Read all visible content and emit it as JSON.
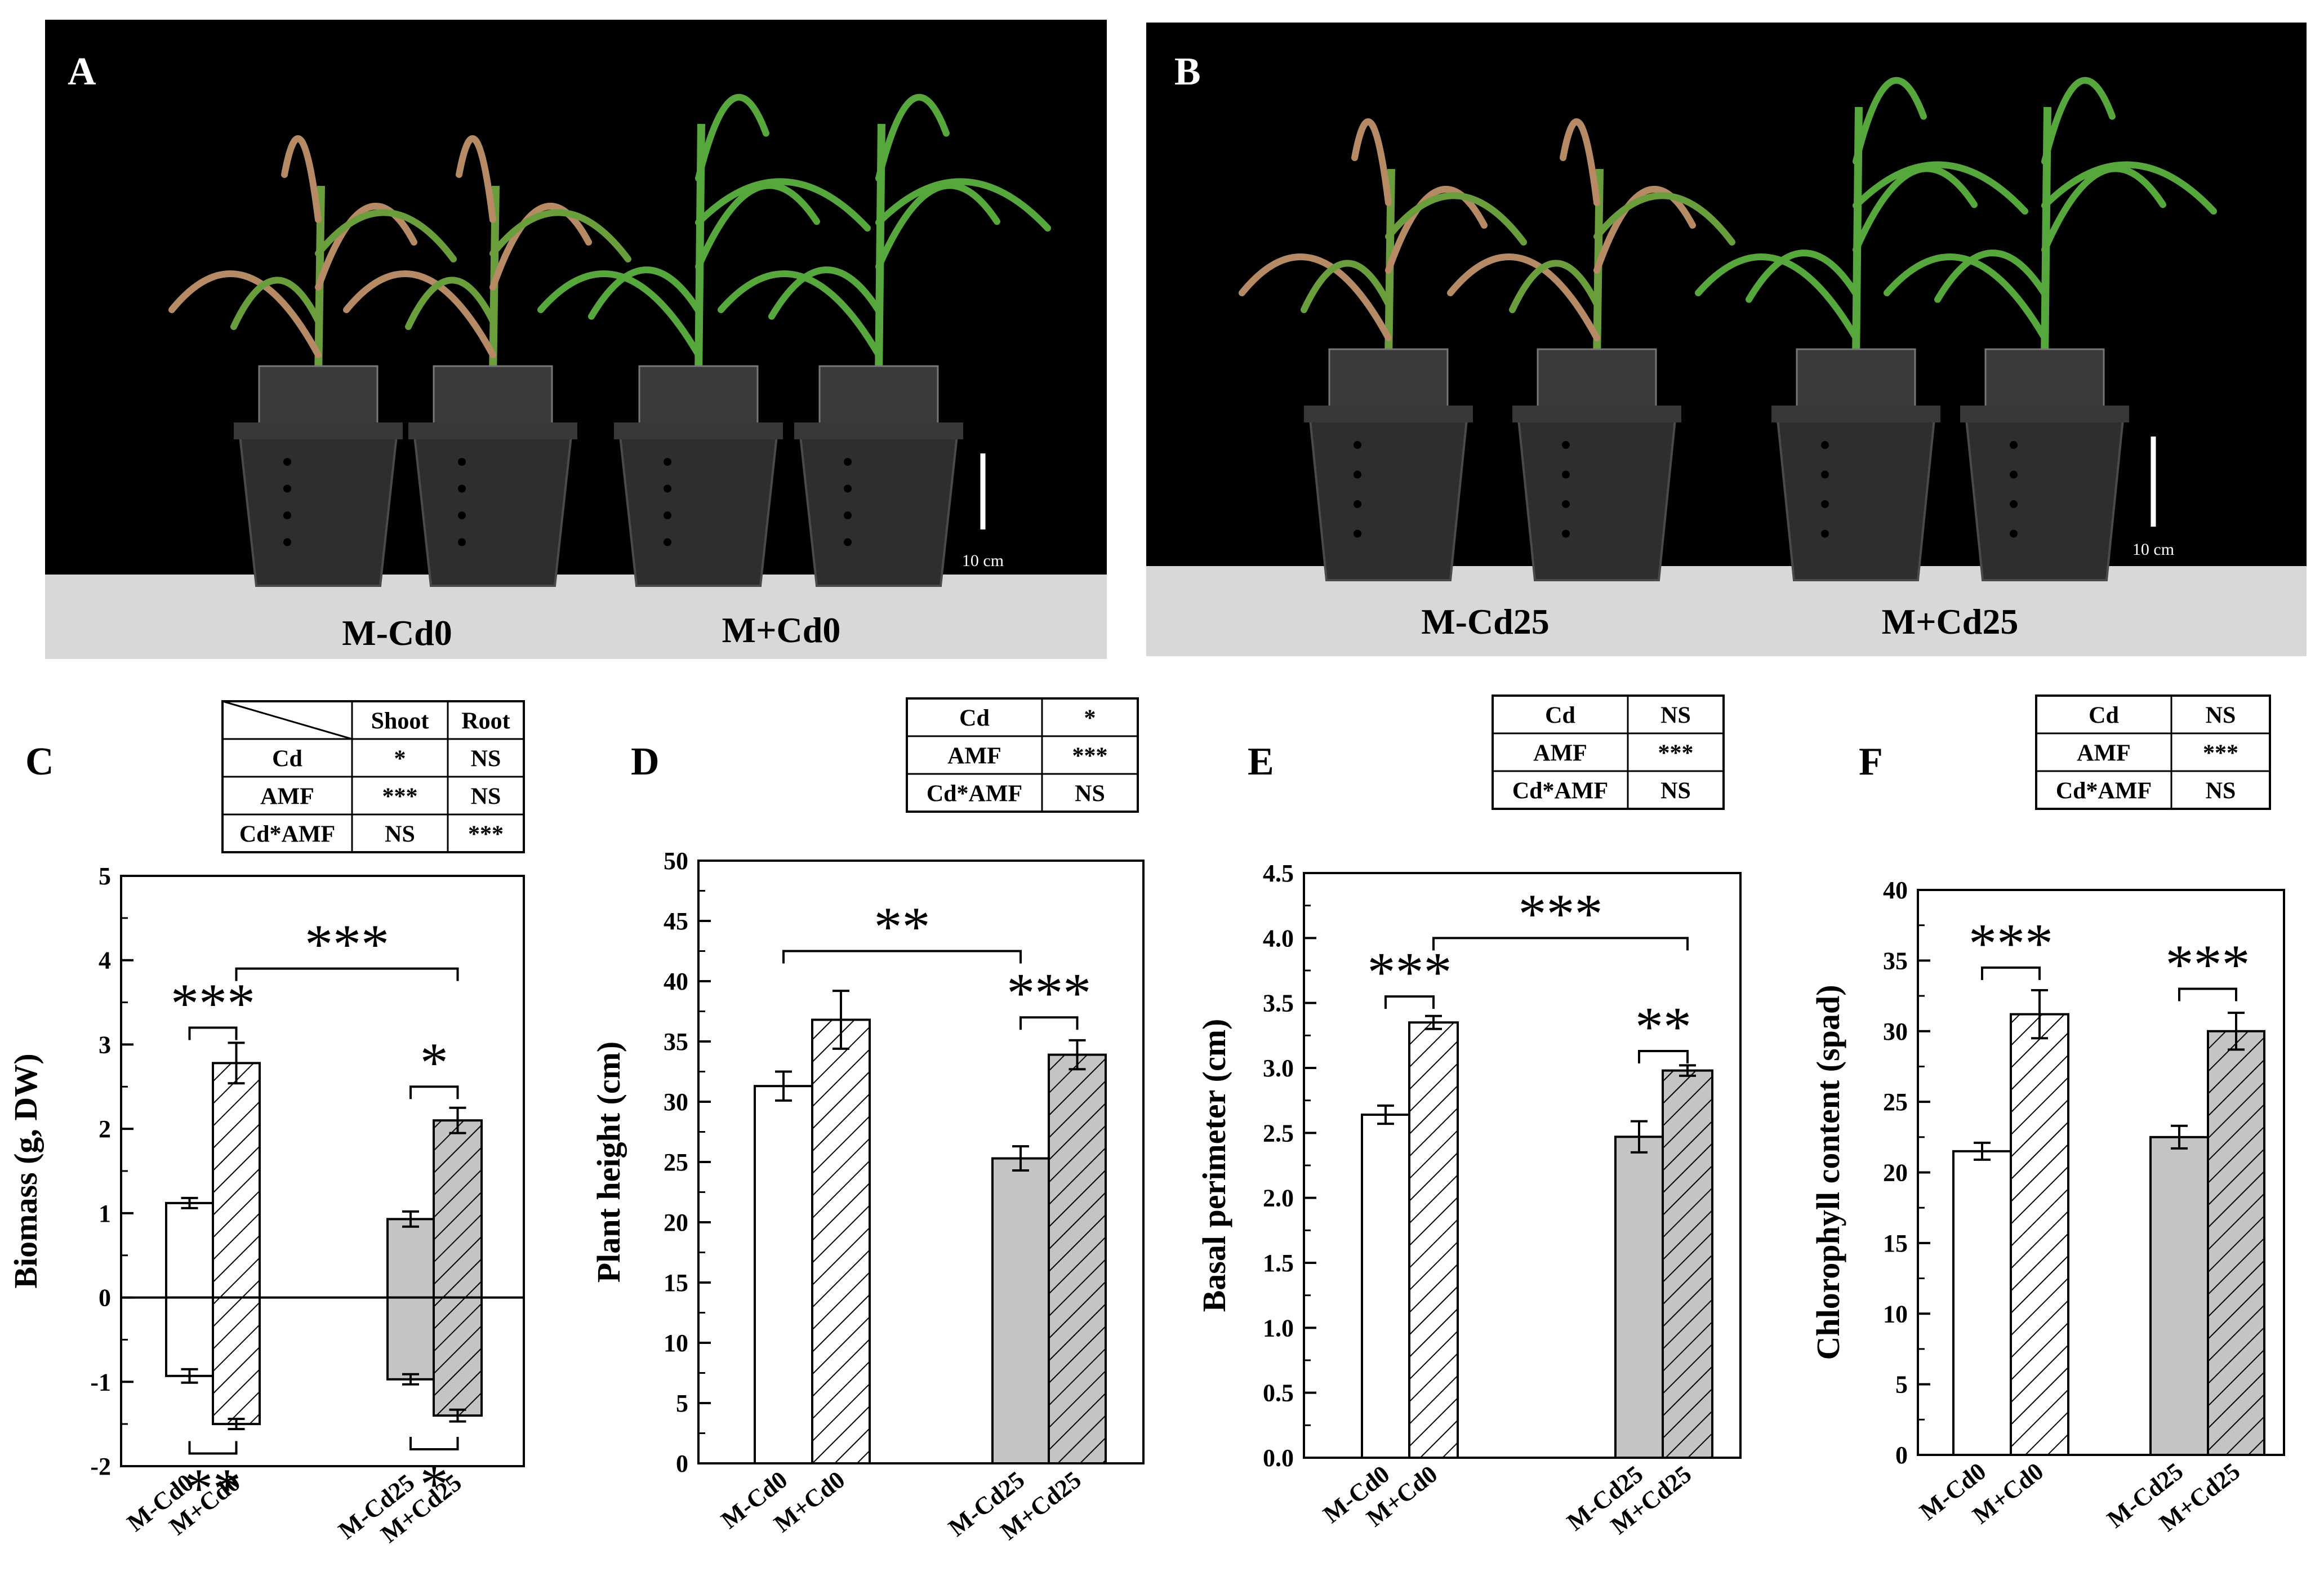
{
  "colors": {
    "photo_bg": "#000000",
    "shelf": "#d8d8d8",
    "pot": "#2e2e30",
    "leaf": "#4f9a3a",
    "bar_cd25": "#c4c4c4",
    "bar_cd0": "#ffffff",
    "ink": "#000000"
  },
  "photos": [
    {
      "panel": "A",
      "pots": 4,
      "group_labels": [
        "M-Cd0",
        "M+Cd0"
      ],
      "scale_label": "10 cm"
    },
    {
      "panel": "B",
      "pots": 4,
      "group_labels": [
        "M-Cd25",
        "M+Cd25"
      ],
      "scale_label": "10 cm"
    }
  ],
  "chart_data": [
    {
      "panel": "C",
      "type": "bar",
      "title": "",
      "ylabel": "Biomass (g, DW)",
      "ylim": [
        -2,
        5
      ],
      "yticks": [
        "-2",
        "-1",
        "0",
        "1",
        "2",
        "3",
        "4",
        "5"
      ],
      "categories": [
        "M-Cd0",
        "M+Cd0",
        "M-Cd25",
        "M+Cd25"
      ],
      "series": [
        {
          "name": "Shoot",
          "values": [
            1.12,
            2.78,
            0.93,
            2.1
          ],
          "errors": [
            0.06,
            0.24,
            0.09,
            0.15
          ]
        },
        {
          "name": "Root",
          "values": [
            -0.93,
            -1.5,
            -0.97,
            -1.4
          ],
          "errors": [
            0.08,
            0.06,
            0.06,
            0.07
          ]
        }
      ],
      "fills": [
        "white",
        "white-hatch",
        "gray",
        "gray-hatch"
      ],
      "annotations": [
        {
          "text": "***",
          "between": [
            0,
            1
          ],
          "series": "Shoot",
          "level": 3.2
        },
        {
          "text": "*",
          "between": [
            2,
            3
          ],
          "series": "Shoot",
          "level": 2.5
        },
        {
          "text": "***",
          "between": [
            1,
            3
          ],
          "series": "Shoot",
          "level": 3.9
        },
        {
          "text": "**",
          "between": [
            0,
            1
          ],
          "series": "Root",
          "level": -1.85
        },
        {
          "text": "*",
          "between": [
            2,
            3
          ],
          "series": "Root",
          "level": -1.8
        }
      ],
      "stats_table": {
        "header": [
          "",
          "Shoot",
          "Root"
        ],
        "rows": [
          [
            "Cd",
            "*",
            "NS"
          ],
          [
            "AMF",
            "***",
            "NS"
          ],
          [
            "Cd*AMF",
            "NS",
            "***"
          ]
        ]
      }
    },
    {
      "panel": "D",
      "type": "bar",
      "title": "",
      "ylabel": "Plant height (cm)",
      "ylim": [
        0,
        50
      ],
      "yticks": [
        "0",
        "5",
        "10",
        "15",
        "20",
        "25",
        "30",
        "35",
        "40",
        "45",
        "50"
      ],
      "categories": [
        "M-Cd0",
        "M+Cd0",
        "M-Cd25",
        "M+Cd25"
      ],
      "series": [
        {
          "name": "Plant height",
          "values": [
            31.3,
            36.8,
            25.3,
            33.9
          ],
          "errors": [
            1.2,
            2.4,
            1.0,
            1.2
          ]
        }
      ],
      "fills": [
        "white",
        "white-hatch",
        "gray",
        "gray-hatch"
      ],
      "annotations": [
        {
          "text": "**",
          "between": [
            0,
            2
          ],
          "level": 42.5
        },
        {
          "text": "***",
          "between": [
            2,
            3
          ],
          "level": 37.0
        }
      ],
      "stats_table": {
        "header": [],
        "rows": [
          [
            "Cd",
            "*"
          ],
          [
            "AMF",
            "***"
          ],
          [
            "Cd*AMF",
            "NS"
          ]
        ]
      }
    },
    {
      "panel": "E",
      "type": "bar",
      "title": "",
      "ylabel": "Basal perimeter (cm)",
      "ylim": [
        0,
        4.5
      ],
      "yticks": [
        "0.0",
        "0.5",
        "1.0",
        "1.5",
        "2.0",
        "2.5",
        "3.0",
        "3.5",
        "4.0",
        "4.5"
      ],
      "categories": [
        "M-Cd0",
        "M+Cd0",
        "M-Cd25",
        "M+Cd25"
      ],
      "series": [
        {
          "name": "Basal perimeter",
          "values": [
            2.64,
            3.35,
            2.47,
            2.98
          ],
          "errors": [
            0.07,
            0.05,
            0.12,
            0.04
          ]
        }
      ],
      "fills": [
        "white",
        "white-hatch",
        "gray",
        "gray-hatch"
      ],
      "annotations": [
        {
          "text": "***",
          "between": [
            0,
            1
          ],
          "level": 3.55
        },
        {
          "text": "***",
          "between": [
            1,
            3
          ],
          "level": 4.0
        },
        {
          "text": "**",
          "between": [
            2,
            3
          ],
          "level": 3.13
        }
      ],
      "stats_table": {
        "header": [],
        "rows": [
          [
            "Cd",
            "NS"
          ],
          [
            "AMF",
            "***"
          ],
          [
            "Cd*AMF",
            "NS"
          ]
        ]
      }
    },
    {
      "panel": "F",
      "type": "bar",
      "title": "",
      "ylabel": "Chlorophyll content (spad)",
      "ylim": [
        0,
        40
      ],
      "yticks": [
        "0",
        "5",
        "10",
        "15",
        "20",
        "25",
        "30",
        "35",
        "40"
      ],
      "categories": [
        "M-Cd0",
        "M+Cd0",
        "M-Cd25",
        "M+Cd25"
      ],
      "series": [
        {
          "name": "Chlorophyll content",
          "values": [
            21.5,
            31.2,
            22.5,
            30.0
          ],
          "errors": [
            0.6,
            1.7,
            0.8,
            1.3
          ]
        }
      ],
      "fills": [
        "white",
        "white-hatch",
        "gray",
        "gray-hatch"
      ],
      "annotations": [
        {
          "text": "***",
          "between": [
            0,
            1
          ],
          "level": 34.5
        },
        {
          "text": "***",
          "between": [
            2,
            3
          ],
          "level": 33.0
        }
      ],
      "stats_table": {
        "header": [],
        "rows": [
          [
            "Cd",
            "NS"
          ],
          [
            "AMF",
            "***"
          ],
          [
            "Cd*AMF",
            "NS"
          ]
        ]
      }
    }
  ]
}
